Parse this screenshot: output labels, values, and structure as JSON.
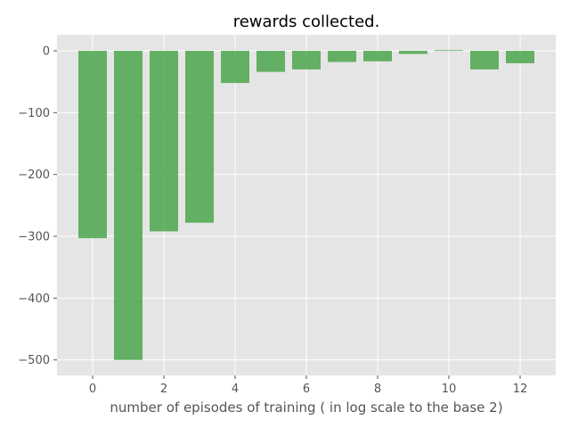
{
  "chart_data": {
    "type": "bar",
    "title": "rewards collected.",
    "xlabel": "number of episodes of training ( in log scale to the base 2)",
    "ylabel": "",
    "x": [
      0,
      1,
      2,
      3,
      4,
      5,
      6,
      7,
      8,
      9,
      10,
      11,
      12
    ],
    "values": [
      -303,
      -500,
      -292,
      -278,
      -52,
      -34,
      -30,
      -18,
      -17,
      -5,
      1,
      -30,
      -20
    ],
    "xlim": [
      -1,
      13
    ],
    "ylim": [
      -525,
      26
    ],
    "xticks": [
      0,
      2,
      4,
      6,
      8,
      10,
      12
    ],
    "yticks": [
      0,
      -100,
      -200,
      -300,
      -400,
      -500
    ],
    "xtick_labels": [
      "0",
      "2",
      "4",
      "6",
      "8",
      "10",
      "12"
    ],
    "ytick_labels": [
      "0",
      "−100",
      "−200",
      "−300",
      "−400",
      "−500"
    ],
    "bar_width": 0.8,
    "bar_color": "#4ca64c",
    "background_color": "#e5e5e5",
    "grid": true,
    "grid_color": "#ffffff"
  }
}
